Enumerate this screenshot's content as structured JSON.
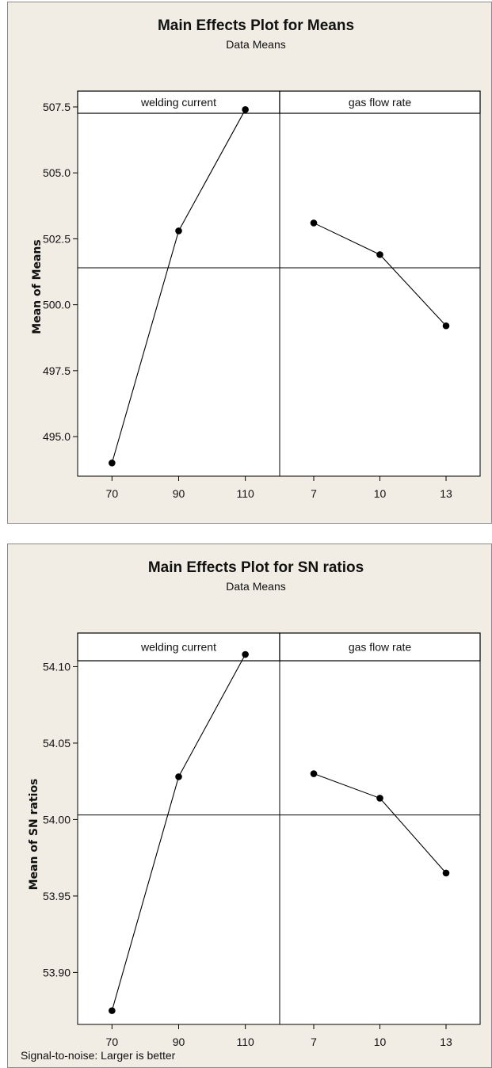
{
  "chart_data": [
    {
      "type": "line",
      "title": "Main Effects Plot for Means",
      "subtitle": "Data Means",
      "ylabel": "Mean of Means",
      "ylim": [
        493.5,
        508.1
      ],
      "yticks": [
        "495.0",
        "497.5",
        "500.0",
        "502.5",
        "505.0",
        "507.5"
      ],
      "overall_mean": 501.4,
      "panels": [
        {
          "name": "welding current",
          "x": [
            "70",
            "90",
            "110"
          ],
          "values": [
            494.0,
            502.8,
            507.4
          ]
        },
        {
          "name": "gas flow rate",
          "x": [
            "7",
            "10",
            "13"
          ],
          "values": [
            503.1,
            501.9,
            499.2
          ]
        }
      ],
      "footnote": ""
    },
    {
      "type": "line",
      "title": "Main Effects Plot for SN ratios",
      "subtitle": "Data Means",
      "ylabel": "Mean of SN ratios",
      "ylim": [
        53.866,
        54.122
      ],
      "yticks": [
        "53.90",
        "53.95",
        "54.00",
        "54.05",
        "54.10"
      ],
      "overall_mean": 54.003,
      "panels": [
        {
          "name": "welding current",
          "x": [
            "70",
            "90",
            "110"
          ],
          "values": [
            53.875,
            54.028,
            54.108
          ]
        },
        {
          "name": "gas flow rate",
          "x": [
            "7",
            "10",
            "13"
          ],
          "values": [
            54.03,
            54.014,
            53.965
          ]
        }
      ],
      "footnote": "Signal-to-noise: Larger is better"
    }
  ]
}
